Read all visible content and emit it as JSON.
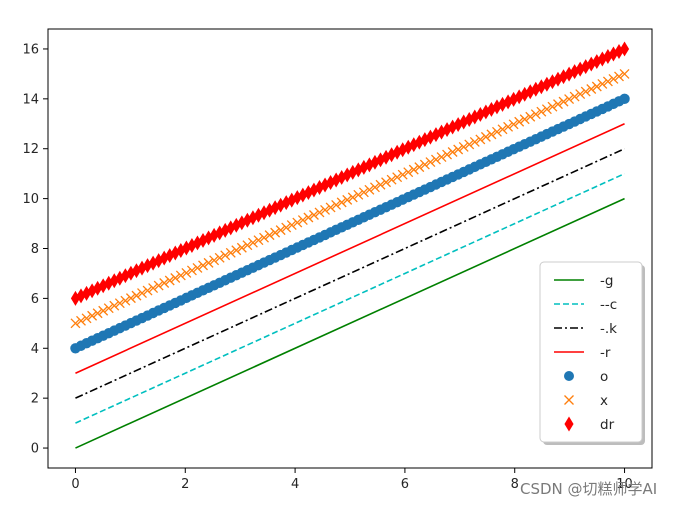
{
  "chart_data": {
    "type": "line",
    "title": "",
    "xlabel": "",
    "ylabel": "",
    "xlim": [
      -0.5,
      10.5
    ],
    "ylim": [
      -0.8,
      16.8
    ],
    "xticks": [
      0,
      2,
      4,
      6,
      8,
      10
    ],
    "yticks": [
      0,
      2,
      4,
      6,
      8,
      10,
      12,
      14,
      16
    ],
    "grid": false,
    "legend_position": "lower right",
    "x_range": [
      0,
      10
    ],
    "series": [
      {
        "name": "-g",
        "kind": "line",
        "linestyle": "solid",
        "color": "#008000",
        "start": 0,
        "end": 10
      },
      {
        "name": "--c",
        "kind": "line",
        "linestyle": "dashed",
        "color": "#00bfbf",
        "start": 1,
        "end": 11
      },
      {
        "name": "-.k",
        "kind": "line",
        "linestyle": "dashdot",
        "color": "#000000",
        "start": 2,
        "end": 12
      },
      {
        "name": "-r",
        "kind": "line",
        "linestyle": "solid",
        "color": "#ff0000",
        "start": 3,
        "end": 13
      },
      {
        "name": "o",
        "kind": "marker",
        "marker": "circle",
        "color": "#1f77b4",
        "start": 4,
        "end": 14
      },
      {
        "name": "x",
        "kind": "marker",
        "marker": "x",
        "color": "#ff7f0e",
        "start": 5,
        "end": 15
      },
      {
        "name": "dr",
        "kind": "marker",
        "marker": "diamond",
        "color": "#ff0000",
        "start": 6,
        "end": 16
      }
    ]
  },
  "watermark": "CSDN @切糕师学AI"
}
